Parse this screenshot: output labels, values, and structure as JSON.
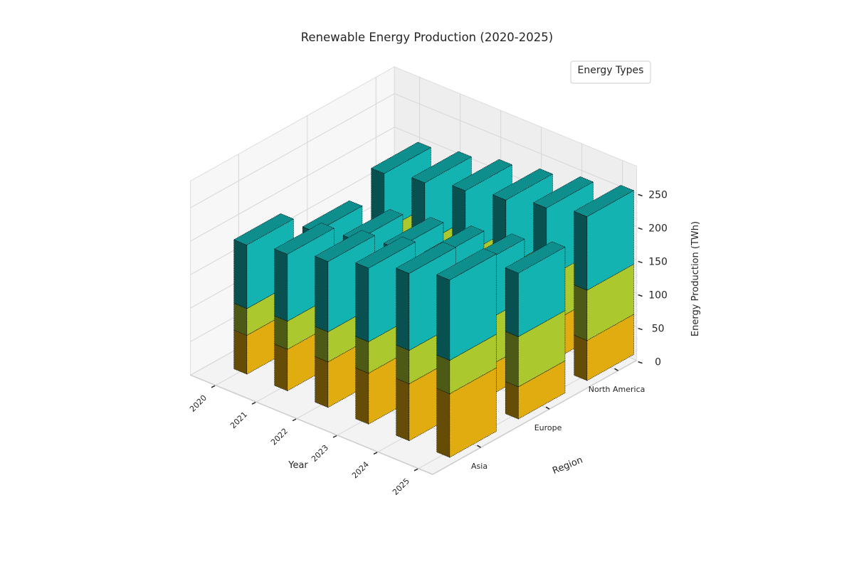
{
  "chart_data": {
    "type": "bar3d",
    "title": "Renewable Energy Production (2020-2025)",
    "xlabel": "Year",
    "ylabel": "Region",
    "zlabel": "Energy Production (TWh)",
    "years": [
      "2020",
      "2021",
      "2022",
      "2023",
      "2024",
      "2025"
    ],
    "regions": [
      "Asia",
      "Europe",
      "North America"
    ],
    "zticks": [
      0,
      50,
      100,
      150,
      200,
      250
    ],
    "zlim": [
      0,
      290
    ],
    "legend_title": "Energy Types",
    "legend_placement": "top-right",
    "segment_colors": [
      "#e0ac10",
      "#abc82f",
      "#12b3b1"
    ],
    "stacks": [
      {
        "year": "2020",
        "region": "Asia",
        "values": [
          58,
          40,
          95
        ]
      },
      {
        "year": "2021",
        "region": "Asia",
        "values": [
          62,
          42,
          100
        ]
      },
      {
        "year": "2022",
        "region": "Asia",
        "values": [
          68,
          45,
          105
        ]
      },
      {
        "year": "2023",
        "region": "Asia",
        "values": [
          76,
          47,
          110
        ]
      },
      {
        "year": "2024",
        "region": "Asia",
        "values": [
          85,
          50,
          115
        ]
      },
      {
        "year": "2025",
        "region": "Asia",
        "values": [
          95,
          50,
          120
        ]
      },
      {
        "year": "2020",
        "region": "Europe",
        "values": [
          35,
          50,
          70
        ]
      },
      {
        "year": "2021",
        "region": "Europe",
        "values": [
          37,
          55,
          75
        ]
      },
      {
        "year": "2022",
        "region": "Europe",
        "values": [
          40,
          60,
          80
        ]
      },
      {
        "year": "2023",
        "region": "Europe",
        "values": [
          42,
          65,
          85
        ]
      },
      {
        "year": "2024",
        "region": "Europe",
        "values": [
          45,
          70,
          90
        ]
      },
      {
        "year": "2025",
        "region": "Europe",
        "values": [
          48,
          75,
          95
        ]
      },
      {
        "year": "2020",
        "region": "North America",
        "values": [
          45,
          55,
          85
        ]
      },
      {
        "year": "2021",
        "region": "North America",
        "values": [
          48,
          58,
          90
        ]
      },
      {
        "year": "2022",
        "region": "North America",
        "values": [
          52,
          62,
          95
        ]
      },
      {
        "year": "2023",
        "region": "North America",
        "values": [
          55,
          65,
          100
        ]
      },
      {
        "year": "2024",
        "region": "North America",
        "values": [
          58,
          70,
          105
        ]
      },
      {
        "year": "2025",
        "region": "North America",
        "values": [
          60,
          75,
          110
        ]
      }
    ]
  }
}
